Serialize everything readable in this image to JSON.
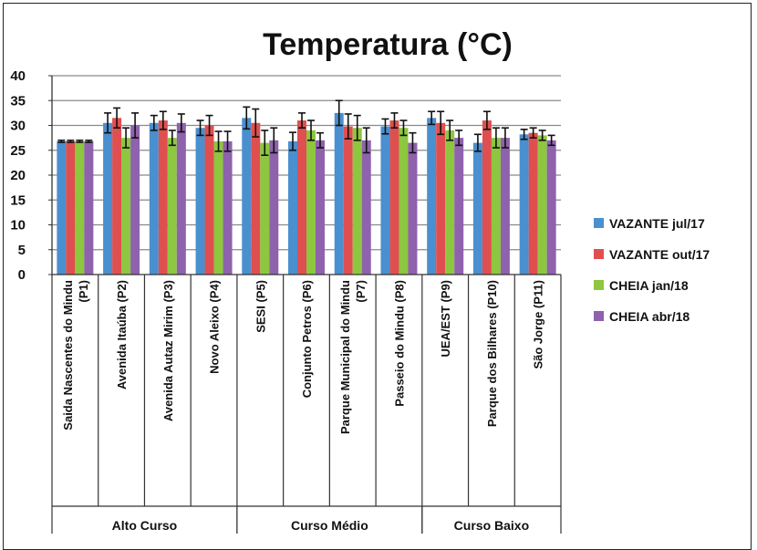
{
  "chart_data": {
    "type": "bar",
    "title": "Temperatura (°C)",
    "categories": [
      [
        "Saida Nascentes do Mindu",
        "(P1)"
      ],
      [
        "Avenida Itaúba (P2)"
      ],
      [
        "Avenida Autaz Mirim (P3)"
      ],
      [
        "Novo Aleixo (P4)"
      ],
      [
        "SESI (P5)"
      ],
      [
        "Conjunto Petros (P6)"
      ],
      [
        "Parque Municipal do Mindu",
        "(P7)"
      ],
      [
        "Passeio do Mindu (P8)"
      ],
      [
        "UEA/EST (P9)"
      ],
      [
        "Parque dos Bilhares (P10)"
      ],
      [
        "São Jorge (P11)"
      ]
    ],
    "groups": [
      {
        "label": "Alto Curso",
        "span": [
          0,
          3
        ]
      },
      {
        "label": "Curso Médio",
        "span": [
          4,
          7
        ]
      },
      {
        "label": "Curso Baixo",
        "span": [
          8,
          10
        ]
      }
    ],
    "ylim": [
      0,
      40
    ],
    "yticks": [
      0,
      5,
      10,
      15,
      20,
      25,
      30,
      35,
      40
    ],
    "grid": true,
    "legend_position": "right",
    "series": [
      {
        "name": "VAZANTE jul/17",
        "color": "#4a8fcf",
        "values": [
          26.8,
          30.5,
          30.5,
          29.5,
          31.5,
          26.8,
          32.5,
          29.8,
          31.5,
          26.5,
          28.2
        ],
        "errors": [
          0.2,
          2.0,
          1.5,
          1.5,
          2.2,
          1.8,
          2.5,
          1.5,
          1.3,
          1.7,
          1.0
        ]
      },
      {
        "name": "VAZANTE out/17",
        "color": "#e04f4f",
        "values": [
          26.8,
          31.5,
          31.0,
          30.0,
          30.5,
          31.0,
          29.8,
          31.0,
          30.5,
          31.0,
          28.5
        ],
        "errors": [
          0.2,
          2.0,
          1.8,
          2.0,
          2.8,
          1.5,
          2.5,
          1.5,
          2.3,
          1.8,
          1.0
        ]
      },
      {
        "name": "CHEIA jan/18",
        "color": "#8dc63f",
        "values": [
          26.8,
          27.5,
          27.5,
          26.8,
          26.5,
          29.0,
          29.5,
          29.5,
          29.0,
          27.5,
          28.0
        ],
        "errors": [
          0.2,
          2.0,
          1.5,
          2.0,
          2.5,
          2.0,
          2.5,
          1.5,
          2.0,
          2.0,
          1.0
        ]
      },
      {
        "name": "CHEIA abr/18",
        "color": "#8e62ad",
        "values": [
          26.8,
          30.0,
          30.5,
          26.8,
          27.0,
          27.0,
          27.0,
          26.5,
          27.5,
          27.5,
          27.0
        ],
        "errors": [
          0.2,
          2.5,
          1.8,
          2.0,
          2.5,
          1.5,
          2.5,
          2.0,
          1.5,
          2.0,
          1.0
        ]
      }
    ]
  }
}
